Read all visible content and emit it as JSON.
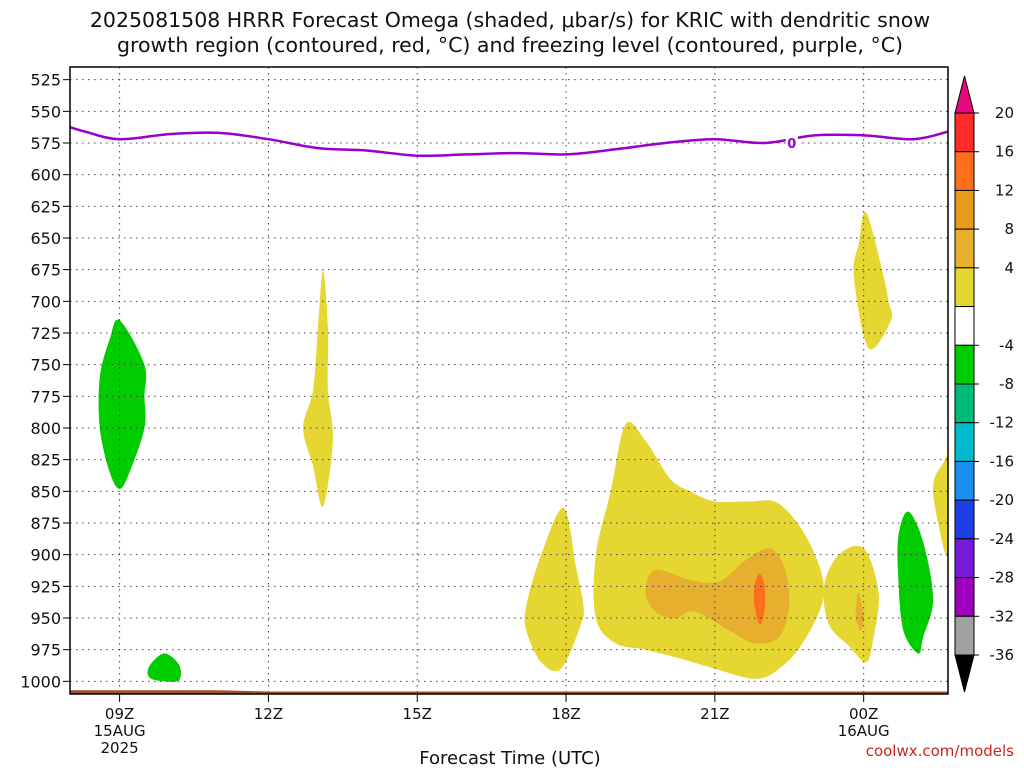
{
  "title": {
    "line1": "2025081508 HRRR Forecast Omega (shaded, μbar/s) for KRIC with dendritic snow",
    "line2": "growth region (contoured, red, °C) and freezing level (contoured, purple, °C)"
  },
  "credit": "coolwx.com/models",
  "chart_data": {
    "type": "contour",
    "title": "2025081508 HRRR Forecast Omega (shaded, μbar/s) for KRIC with dendritic snow growth region (contoured, red, °C) and freezing level (contoured, purple, °C)",
    "xlabel": "Forecast Time (UTC)",
    "ylabel": "",
    "x_unit": "hours from 2025-08-15 08Z",
    "xlim": [
      0,
      17.7
    ],
    "ylim": [
      1010,
      515
    ],
    "y_inverted": true,
    "y_ticks": [
      525,
      550,
      575,
      600,
      625,
      650,
      675,
      700,
      725,
      750,
      775,
      800,
      825,
      850,
      875,
      900,
      925,
      950,
      975,
      1000
    ],
    "x_ticks": [
      {
        "h": 1,
        "label": "09Z",
        "sub": [
          "15AUG",
          "2025"
        ]
      },
      {
        "h": 4,
        "label": "12Z",
        "sub": []
      },
      {
        "h": 7,
        "label": "15Z",
        "sub": []
      },
      {
        "h": 10,
        "label": "18Z",
        "sub": []
      },
      {
        "h": 13,
        "label": "21Z",
        "sub": []
      },
      {
        "h": 16,
        "label": "00Z",
        "sub": [
          "16AUG"
        ]
      }
    ],
    "grid": true,
    "colorbar": {
      "unit": "μbar/s",
      "bins": [
        {
          "color": "#e6087a",
          "label": "20",
          "shape": "tri-top"
        },
        {
          "color": "#ff2b2b",
          "label": "16"
        },
        {
          "color": "#ff6e1a",
          "label": "12"
        },
        {
          "color": "#e89a1a",
          "label": "8"
        },
        {
          "color": "#e6af2d",
          "label": "4"
        },
        {
          "color": "#e6d632",
          "label": ""
        },
        {
          "color": "#ffffff",
          "label": "-4"
        },
        {
          "color": "#00cc00",
          "label": "-8"
        },
        {
          "color": "#00bb77",
          "label": "-12"
        },
        {
          "color": "#00bbcc",
          "label": "-16"
        },
        {
          "color": "#1a8ff0",
          "label": "-20"
        },
        {
          "color": "#1f3fe6",
          "label": "-24"
        },
        {
          "color": "#7a1ad9",
          "label": "-28"
        },
        {
          "color": "#9f00bf",
          "label": "-32"
        },
        {
          "color": "#a0a0a0",
          "label": "-36"
        },
        {
          "color": "#000000",
          "label": "",
          "shape": "tri-bottom"
        }
      ]
    },
    "freezing_level": {
      "label": "0",
      "color": "#9900cc",
      "points": [
        [
          -0.2,
          560
        ],
        [
          0.3,
          566
        ],
        [
          1,
          572
        ],
        [
          2,
          568
        ],
        [
          3,
          567
        ],
        [
          4,
          572
        ],
        [
          5,
          579
        ],
        [
          6,
          581
        ],
        [
          7,
          585
        ],
        [
          8,
          584
        ],
        [
          9,
          583
        ],
        [
          10,
          584
        ],
        [
          11,
          580
        ],
        [
          12,
          575
        ],
        [
          13,
          572
        ],
        [
          14,
          575
        ],
        [
          15,
          569
        ],
        [
          16,
          569
        ],
        [
          17,
          572
        ],
        [
          17.7,
          566
        ]
      ]
    },
    "omega_regions": [
      {
        "level": "-4",
        "color": "#00cc00",
        "points": [
          [
            1,
            715
          ],
          [
            1.5,
            750
          ],
          [
            1.5,
            775
          ],
          [
            1.5,
            800
          ],
          [
            1.2,
            835
          ],
          [
            1,
            848
          ],
          [
            0.8,
            835
          ],
          [
            0.6,
            800
          ],
          [
            0.6,
            760
          ],
          [
            0.8,
            730
          ]
        ]
      },
      {
        "level": "-4",
        "color": "#00cc00",
        "points": [
          [
            1.9,
            978
          ],
          [
            2.2,
            987
          ],
          [
            2.2,
            999
          ],
          [
            1.9,
            1000
          ],
          [
            1.6,
            997
          ],
          [
            1.6,
            988
          ]
        ]
      },
      {
        "level": "-4",
        "color": "#00cc00",
        "points": [
          [
            16.9,
            866
          ],
          [
            17.2,
            890
          ],
          [
            17.4,
            935
          ],
          [
            17.2,
            965
          ],
          [
            17.1,
            978
          ],
          [
            16.8,
            960
          ],
          [
            16.7,
            920
          ],
          [
            16.7,
            885
          ]
        ]
      },
      {
        "level": "4",
        "color": "#e6d632",
        "points": [
          [
            5.1,
            676
          ],
          [
            5.2,
            720
          ],
          [
            5.2,
            770
          ],
          [
            5.3,
            810
          ],
          [
            5.1,
            862
          ],
          [
            4.9,
            830
          ],
          [
            4.7,
            800
          ],
          [
            4.9,
            770
          ],
          [
            5,
            720
          ]
        ]
      },
      {
        "level": "4",
        "color": "#e6d632",
        "points": [
          [
            16.05,
            630
          ],
          [
            16.4,
            680
          ],
          [
            16.5,
            700
          ],
          [
            16.55,
            715
          ],
          [
            16.1,
            737
          ],
          [
            15.8,
            680
          ],
          [
            15.9,
            655
          ]
        ]
      },
      {
        "level": "4",
        "color": "#e6d632",
        "points": [
          [
            9.95,
            863
          ],
          [
            10.2,
            910
          ],
          [
            10.35,
            940
          ],
          [
            10.3,
            955
          ],
          [
            9.9,
            990
          ],
          [
            9.5,
            985
          ],
          [
            9.2,
            960
          ],
          [
            9.2,
            940
          ],
          [
            9.5,
            900
          ]
        ]
      },
      {
        "level": "4",
        "color": "#e6d632",
        "points": [
          [
            11.2,
            797
          ],
          [
            11.6,
            810
          ],
          [
            12.1,
            840
          ],
          [
            12.5,
            850
          ],
          [
            13,
            858
          ],
          [
            13.7,
            858
          ],
          [
            14.3,
            860
          ],
          [
            14.9,
            890
          ],
          [
            15.2,
            930
          ],
          [
            14.8,
            968
          ],
          [
            14.3,
            990
          ],
          [
            13.8,
            998
          ],
          [
            13,
            990
          ],
          [
            12.3,
            982
          ],
          [
            11.6,
            975
          ],
          [
            11,
            970
          ],
          [
            10.6,
            950
          ],
          [
            10.6,
            900
          ],
          [
            10.9,
            850
          ]
        ]
      },
      {
        "level": "4",
        "color": "#e6d632",
        "points": [
          [
            15.5,
            900
          ],
          [
            16,
            895
          ],
          [
            16.3,
            930
          ],
          [
            16.2,
            965
          ],
          [
            16.05,
            985
          ],
          [
            15.7,
            972
          ],
          [
            15.3,
            955
          ],
          [
            15.2,
            925
          ]
        ]
      },
      {
        "level": "4",
        "color": "#e6d632",
        "points": [
          [
            17.6,
            828
          ],
          [
            17.7,
            828
          ],
          [
            17.7,
            900
          ],
          [
            17.5,
            875
          ],
          [
            17.4,
            845
          ]
        ]
      },
      {
        "level": "8",
        "color": "#e6af2d",
        "points": [
          [
            11.8,
            912
          ],
          [
            12.5,
            920
          ],
          [
            13.1,
            921
          ],
          [
            13.6,
            905
          ],
          [
            14.1,
            895
          ],
          [
            14.4,
            910
          ],
          [
            14.5,
            940
          ],
          [
            14.3,
            965
          ],
          [
            13.8,
            970
          ],
          [
            13.3,
            960
          ],
          [
            12.6,
            945
          ],
          [
            12.2,
            950
          ],
          [
            11.8,
            945
          ],
          [
            11.6,
            930
          ]
        ]
      },
      {
        "level": "8",
        "color": "#e6af2d",
        "points": [
          [
            15.9,
            930
          ],
          [
            16,
            948
          ],
          [
            15.95,
            960
          ],
          [
            15.85,
            952
          ],
          [
            15.85,
            940
          ]
        ]
      },
      {
        "level": "12",
        "color": "#ff6e1a",
        "points": [
          [
            13.9,
            915
          ],
          [
            14,
            925
          ],
          [
            14,
            945
          ],
          [
            13.9,
            955
          ],
          [
            13.8,
            940
          ],
          [
            13.8,
            925
          ]
        ]
      }
    ],
    "ground": {
      "color": "#a0522d",
      "points": [
        [
          -0.2,
          1007
        ],
        [
          3,
          1007
        ],
        [
          4,
          1008
        ],
        [
          17.7,
          1008
        ],
        [
          17.7,
          1011
        ],
        [
          -0.2,
          1011
        ]
      ]
    }
  }
}
